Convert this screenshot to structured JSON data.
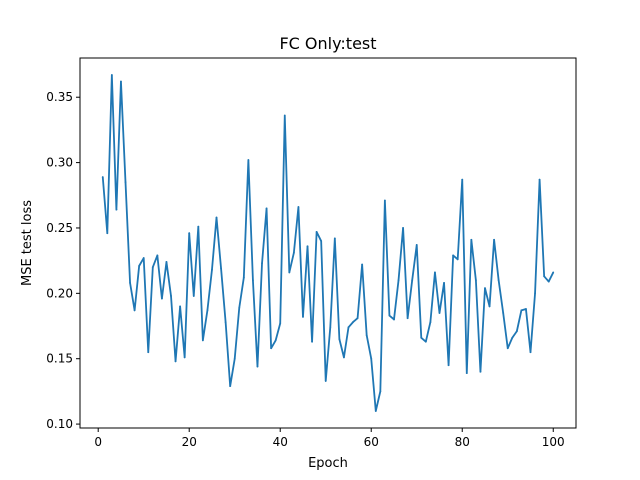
{
  "chart_data": {
    "type": "line",
    "title": "FC Only:test",
    "xlabel": "Epoch",
    "ylabel": "MSE test loss",
    "xlim": [
      -4,
      105
    ],
    "ylim": [
      0.097,
      0.38
    ],
    "xticks": [
      0,
      20,
      40,
      60,
      80,
      100
    ],
    "yticks": [
      0.1,
      0.15,
      0.2,
      0.25,
      0.3,
      0.35
    ],
    "xtick_labels": [
      "0",
      "20",
      "40",
      "60",
      "80",
      "100"
    ],
    "ytick_labels": [
      "0.10",
      "0.15",
      "0.20",
      "0.25",
      "0.30",
      "0.35"
    ],
    "grid": false,
    "legend": "none",
    "color": "#1f77b4",
    "series": [
      {
        "x": [
          1,
          2,
          3,
          4,
          5,
          6,
          7,
          8,
          9,
          10,
          11,
          12,
          13,
          14,
          15,
          16,
          17,
          18,
          19,
          20,
          21,
          22,
          23,
          24,
          25,
          26,
          27,
          28,
          29,
          30,
          31,
          32,
          33,
          34,
          35,
          36,
          37,
          38,
          39,
          40,
          41,
          42,
          43,
          44,
          45,
          46,
          47,
          48,
          49,
          50,
          51,
          52,
          53,
          54,
          55,
          56,
          57,
          58,
          59,
          60,
          61,
          62,
          63,
          64,
          65,
          66,
          67,
          68,
          69,
          70,
          71,
          72,
          73,
          74,
          75,
          76,
          77,
          78,
          79,
          80,
          81,
          82,
          83,
          84,
          85,
          86,
          87,
          88,
          89,
          90,
          91,
          92,
          93,
          94,
          95,
          96,
          97,
          98,
          99,
          100
        ],
        "values": [
          0.289,
          0.246,
          0.367,
          0.264,
          0.362,
          0.285,
          0.208,
          0.187,
          0.221,
          0.227,
          0.155,
          0.22,
          0.229,
          0.196,
          0.224,
          0.198,
          0.148,
          0.19,
          0.151,
          0.246,
          0.198,
          0.251,
          0.164,
          0.187,
          0.218,
          0.258,
          0.219,
          0.178,
          0.129,
          0.15,
          0.189,
          0.212,
          0.302,
          0.21,
          0.144,
          0.223,
          0.265,
          0.158,
          0.164,
          0.177,
          0.336,
          0.216,
          0.231,
          0.266,
          0.182,
          0.236,
          0.163,
          0.247,
          0.24,
          0.133,
          0.174,
          0.242,
          0.165,
          0.151,
          0.174,
          0.178,
          0.181,
          0.222,
          0.168,
          0.15,
          0.11,
          0.125,
          0.271,
          0.183,
          0.18,
          0.21,
          0.25,
          0.181,
          0.21,
          0.237,
          0.166,
          0.163,
          0.178,
          0.216,
          0.185,
          0.208,
          0.145,
          0.229,
          0.226,
          0.287,
          0.139,
          0.241,
          0.21,
          0.14,
          0.204,
          0.19,
          0.241,
          0.21,
          0.185,
          0.158,
          0.166,
          0.171,
          0.187,
          0.188,
          0.155,
          0.2,
          0.287,
          0.213,
          0.209,
          0.216
        ]
      }
    ]
  }
}
